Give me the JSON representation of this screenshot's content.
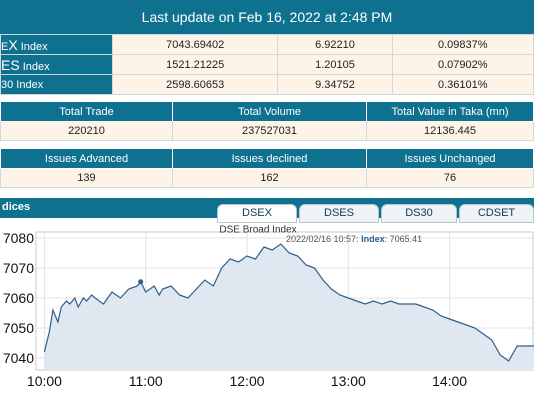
{
  "header": {
    "title": "Last update on Feb 16, 2022 at 2:48 PM"
  },
  "indices": [
    {
      "prefix": "E",
      "big": "X",
      "suffix": " Index",
      "value": "7043.69402",
      "change": "6.92210",
      "pct": "0.09837%"
    },
    {
      "prefix": "",
      "big": "ES",
      "suffix": " Index",
      "value": "1521.21225",
      "change": "1.20105",
      "pct": "0.07902%"
    },
    {
      "prefix": "",
      "big": "30",
      "suffix": " Index",
      "value": "2598.60653",
      "change": "9.34752",
      "pct": "0.36101%"
    }
  ],
  "trade": {
    "headers": [
      "Total Trade",
      "Total Volume",
      "Total Value in Taka (mn)"
    ],
    "values": [
      "220210",
      "237527031",
      "12136.445"
    ]
  },
  "issues": {
    "headers": [
      "Issues Advanced",
      "Issues declined",
      "Issues Unchanged"
    ],
    "values": [
      "139",
      "162",
      "76"
    ]
  },
  "indices_panel": {
    "label": "dices"
  },
  "tabs": [
    "DSEX",
    "DSES",
    "DS30",
    "CDSET"
  ],
  "chart_data": {
    "type": "area",
    "title": "DSE Broad Index",
    "tooltip_time": "2022/02/16 10:57",
    "tooltip_label": "Index",
    "tooltip_value": "7065.41",
    "x_ticks": [
      "10:00",
      "11:00",
      "12:00",
      "13:00",
      "14:00"
    ],
    "y_ticks": [
      "7040",
      "7050",
      "7060",
      "7070",
      "7080"
    ],
    "ylim": [
      7036,
      7082
    ],
    "x_range": [
      "09:55",
      "14:50"
    ],
    "line_color": "#2f5f8a",
    "fill_color": "#dfe7f0",
    "grid": true,
    "series": [
      {
        "x": [
          "10:00",
          "10:03",
          "10:05",
          "10:08",
          "10:10",
          "10:13",
          "10:15",
          "10:18",
          "10:20",
          "10:23",
          "10:25",
          "10:28",
          "10:30",
          "10:35",
          "10:40",
          "10:45",
          "10:50",
          "10:55",
          "10:57",
          "11:00",
          "11:05",
          "11:08",
          "11:10",
          "11:15",
          "11:20",
          "11:25",
          "11:30",
          "11:35",
          "11:40",
          "11:45",
          "11:50",
          "11:55",
          "12:00",
          "12:05",
          "12:10",
          "12:15",
          "12:20",
          "12:25",
          "12:30",
          "12:35",
          "12:40",
          "12:45",
          "12:50",
          "12:55",
          "13:00",
          "13:05",
          "13:10",
          "13:15",
          "13:20",
          "13:25",
          "13:30",
          "13:35",
          "13:40",
          "13:45",
          "13:50",
          "13:55",
          "14:00",
          "14:05",
          "14:10",
          "14:15",
          "14:20",
          "14:25",
          "14:30",
          "14:35",
          "14:40",
          "14:45",
          "14:50"
        ],
        "y": [
          7042,
          7049,
          7056,
          7052,
          7057,
          7059,
          7058,
          7060,
          7057,
          7060,
          7059,
          7061,
          7060,
          7058,
          7062,
          7060,
          7063,
          7064,
          7065.4,
          7062,
          7064,
          7061,
          7063,
          7064,
          7061,
          7060,
          7063,
          7066,
          7064,
          7070,
          7073,
          7072,
          7074,
          7073,
          7077,
          7076,
          7078,
          7075,
          7074,
          7071,
          7070,
          7066,
          7063,
          7061,
          7060,
          7059,
          7058,
          7059,
          7058,
          7059,
          7058,
          7058,
          7058,
          7057,
          7056,
          7054,
          7053,
          7052,
          7051,
          7050,
          7048,
          7046,
          7041,
          7039,
          7044,
          7044,
          7044
        ]
      }
    ]
  }
}
